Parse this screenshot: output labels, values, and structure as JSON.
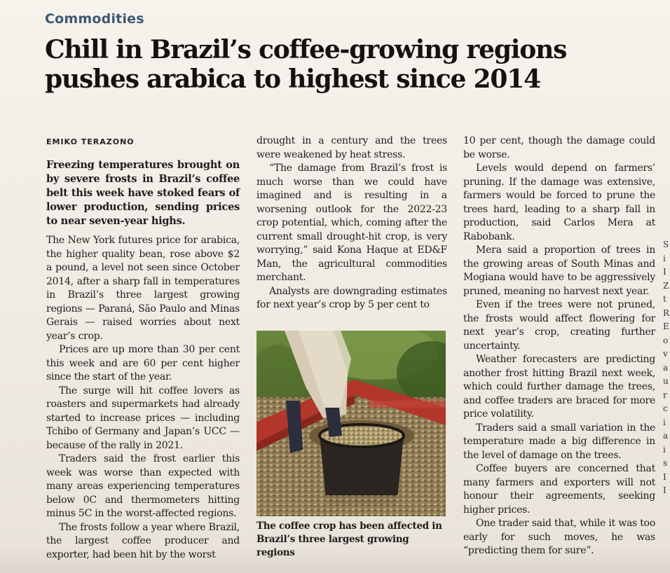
{
  "section": "Commodities",
  "headline": "Chill in Brazil’s coffee-growing regions pushes arabica to highest since 2014",
  "byline": "EMIKO TERAZONO",
  "column1": [
    "Freezing temperatures brought on by severe frosts in Brazil’s coffee belt this week have stoked fears of lower production, sending prices to near seven-year highs.",
    "The New York futures price for arabica, the higher quality bean, rose above $2 a pound, a level not seen since October 2014, after a sharp fall in temperatures in Brazil’s three largest growing regions — Paraná, São Paulo and Minas Gerais — raised worries about next year’s crop.",
    "Prices are up more than 30 per cent this week and are 60 per cent higher since the start of the year.",
    "The surge will hit coffee lovers as roasters and supermarkets had already started to increase prices — including Tchibo of Germany and Japan’s UCC — because of the rally in 2021.",
    "Traders said the frost earlier this week was worse than expected with many areas experiencing temperatures below 0C and thermometers hitting minus 5C in the worst-affected regions.",
    "The frosts follow a year where Brazil, the largest coffee producer and exporter, had been hit by the worst"
  ],
  "column2": [
    "drought in a century and the trees were weakened by heat stress.",
    "“The damage from Brazil’s frost is much worse than we could have imagined and is resulting in a worsening outlook for the 2022-23 crop potential, which, coming after the current small drought-hit crop, is very worrying,” said Kona Haque at ED&F Man, the agricultural commodities merchant.",
    "Analysts are downgrading estimates for next year’s crop by 5 per cent to"
  ],
  "caption": "The coffee crop has been affected in Brazil’s three largest growing regions",
  "column3": [
    "10 per cent, though the damage could be worse.",
    "Levels would depend on farmers’ pruning. If the damage was extensive, farmers would be forced to prune the trees hard, leading to a sharp fall in production, said Carlos Mera at Rabobank.",
    "Mera said a proportion of trees in the growing areas of South Minas and Mogiana would have to be aggressively pruned, meaning no harvest next year.",
    "Even if the trees were not pruned, the frosts would affect flowering for next year’s crop, creating further uncertainty.",
    "Weather forecasters are predicting another frost hitting Brazil next week, which could further damage the trees, and coffee traders are braced for more price volatility.",
    "Traders said a small variation in the temperature made a big difference in the level of damage on the trees.",
    "Coffee buyers are concerned that many farmers and exporters will not honour their agreements, seeking higher prices.",
    "One trader said that, while it was too early for such moves, he was “predicting them for sure”."
  ],
  "edge_letters": [
    "S",
    "i",
    "I",
    "Z",
    "t",
    "",
    "R",
    "E",
    "o",
    "v",
    "a",
    "u",
    "",
    "r",
    "c",
    "i",
    "a",
    "i",
    "s",
    "",
    "I",
    "I"
  ]
}
